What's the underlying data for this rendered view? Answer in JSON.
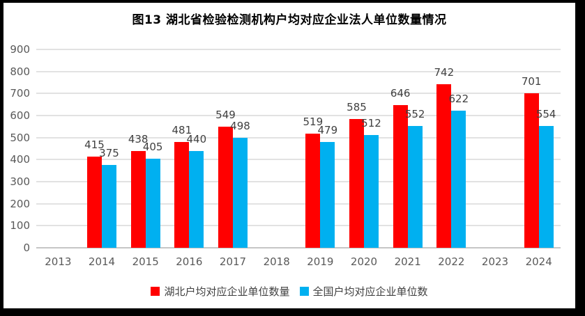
{
  "title": "图13  湖北省检验检测机构户均对应企业法人单位数量情况",
  "chart_data": {
    "type": "bar",
    "categories": [
      "2013",
      "2014",
      "2015",
      "2016",
      "2017",
      "2018",
      "2019",
      "2020",
      "2021",
      "2022",
      "2023",
      "2024"
    ],
    "series": [
      {
        "name": "湖北户均对应企业单位数量",
        "color": "#FF0000",
        "values": [
          null,
          415,
          438,
          481,
          549,
          null,
          519,
          585,
          646,
          742,
          null,
          701
        ]
      },
      {
        "name": "全国户均对应企业单位数",
        "color": "#00B0F0",
        "values": [
          null,
          375,
          405,
          440,
          498,
          null,
          479,
          512,
          552,
          622,
          null,
          554
        ]
      }
    ],
    "title": "图13  湖北省检验检测机构户均对应企业法人单位数量情况",
    "xlabel": "",
    "ylabel": "",
    "ylim": [
      0,
      900
    ],
    "yticks": [
      0,
      100,
      200,
      300,
      400,
      500,
      600,
      700,
      800,
      900
    ],
    "grid": "horizontal",
    "legend_position": "bottom",
    "data_labels": true
  },
  "colors": {
    "series_hubei": "#FF0000",
    "series_national": "#00B0F0",
    "gridline": "#E2E2E2",
    "axis_line": "#C6C6C6",
    "axis_text": "#595959",
    "data_label_text": "#404040",
    "legend_text": "#404040",
    "title_text": "#000000",
    "chart_background": "#FFFFFF",
    "outer_border": "#000000"
  }
}
